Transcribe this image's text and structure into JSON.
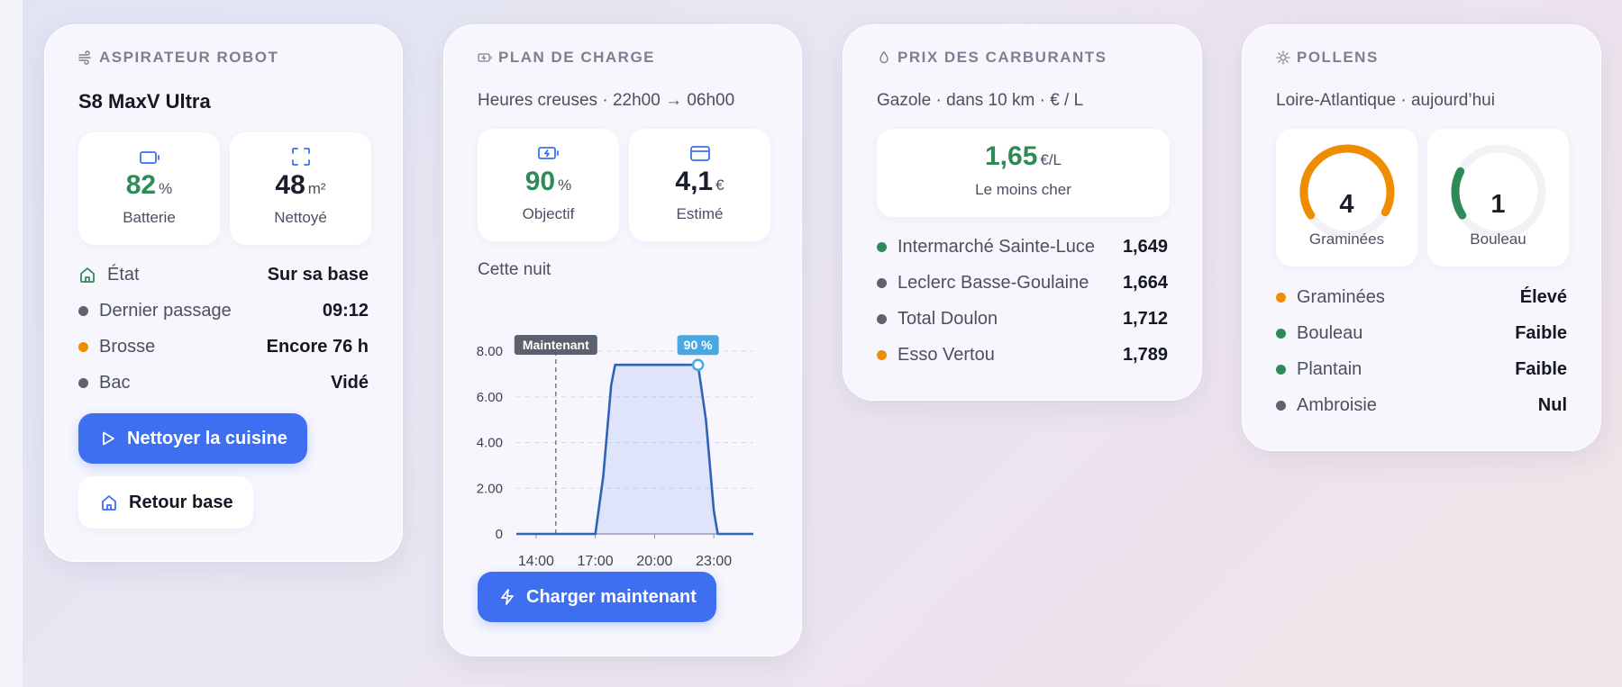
{
  "colors": {
    "accent": "#3d6ff0",
    "green": "#2e8b57",
    "orange": "#f08c00",
    "gray": "#5f6370",
    "chart_line": "#2f63b8"
  },
  "vacuum": {
    "header": "ASPIRATEUR ROBOT",
    "header_icon": "wind-icon",
    "title": "S8 MaxV Ultra",
    "battery": {
      "value": "82",
      "unit": "%",
      "label": "Batterie",
      "icon": "battery-icon"
    },
    "cleaned": {
      "value": "48",
      "unit": "m²",
      "label": "Nettoyé",
      "icon": "expand-icon"
    },
    "rows": [
      {
        "label": "État",
        "value": "Sur sa base",
        "marker": "home-icon"
      },
      {
        "label": "Dernier passage",
        "value": "09:12",
        "marker": "gray"
      },
      {
        "label": "Brosse",
        "value": "Encore 76 h",
        "marker": "orange"
      },
      {
        "label": "Bac",
        "value": "Vidé",
        "marker": "gray"
      }
    ],
    "primary_button": "Nettoyer la cuisine",
    "secondary_button": "Retour base"
  },
  "charge": {
    "header": "PLAN DE CHARGE",
    "header_icon": "battery-charge-icon",
    "subtitle": "Heures creuses · 22h00 → 06h00",
    "target": {
      "value": "90",
      "unit": "%",
      "label": "Objectif",
      "icon": "battery-charge-icon"
    },
    "cost": {
      "value": "4,1",
      "unit": "€",
      "label": "Estimé",
      "icon": "card-icon"
    },
    "section_label": "Cette nuit",
    "button": "Charger maintenant"
  },
  "chart_data": {
    "type": "area",
    "title": "",
    "xlabel": "",
    "ylabel": "",
    "x_tick_labels": [
      "14:00",
      "17:00",
      "20:00",
      "23:00"
    ],
    "y_tick_labels": [
      "0",
      "2.00",
      "4.00",
      "6.00",
      "8.00"
    ],
    "xlim": [
      13,
      25
    ],
    "ylim": [
      0,
      8
    ],
    "grid": true,
    "now_marker": {
      "x": 15,
      "label": "Maintenant"
    },
    "target_marker": {
      "x": 22.2,
      "y": 7.4,
      "label": "90 %"
    },
    "series": [
      {
        "x": [
          13,
          14,
          15,
          16,
          17,
          17.4,
          17.8,
          18,
          19,
          20,
          21,
          22,
          22.2,
          22.6,
          23,
          23.2,
          24,
          25
        ],
        "values": [
          0,
          0,
          0,
          0,
          0,
          2.5,
          6.5,
          7.4,
          7.4,
          7.4,
          7.4,
          7.4,
          7.4,
          5,
          1,
          0,
          0,
          0
        ]
      }
    ]
  },
  "fuel": {
    "header": "PRIX DES CARBURANTS",
    "header_icon": "drop-icon",
    "subtitle": "Gazole · dans 10 km · € / L",
    "best": {
      "value": "1,65",
      "unit": "€/L",
      "label": "Le moins cher"
    },
    "rows": [
      {
        "label": "Intermarché Sainte-Luce",
        "value": "1,649",
        "marker": "green"
      },
      {
        "label": "Leclerc Basse-Goulaine",
        "value": "1,664",
        "marker": "gray"
      },
      {
        "label": "Total Doulon",
        "value": "1,712",
        "marker": "gray"
      },
      {
        "label": "Esso Vertou",
        "value": "1,789",
        "marker": "orange"
      }
    ]
  },
  "pollen": {
    "header": "POLLENS",
    "header_icon": "sun-icon",
    "subtitle": "Loire-Atlantique · aujourd’hui",
    "gauges": [
      {
        "value": "4",
        "label": "Graminées",
        "level": 0.67,
        "color": "#f08c00"
      },
      {
        "value": "1",
        "label": "Bouleau",
        "level": 0.17,
        "color": "#2e8b57"
      }
    ],
    "rows": [
      {
        "label": "Graminées",
        "value": "Élevé",
        "marker": "orange"
      },
      {
        "label": "Bouleau",
        "value": "Faible",
        "marker": "green"
      },
      {
        "label": "Plantain",
        "value": "Faible",
        "marker": "green"
      },
      {
        "label": "Ambroisie",
        "value": "Nul",
        "marker": "gray"
      }
    ]
  }
}
